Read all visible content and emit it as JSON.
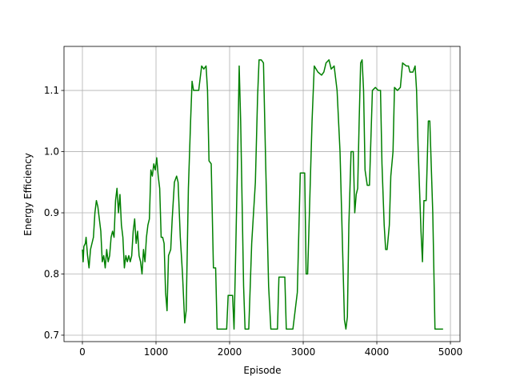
{
  "chart_data": {
    "type": "line",
    "x_label": "Episode",
    "y_label": "Energy Efficiency",
    "xlim": [
      -250,
      5130
    ],
    "ylim": [
      0.6895,
      1.172
    ],
    "xticks": [
      0,
      1000,
      2000,
      3000,
      4000,
      5000
    ],
    "yticks": [
      0.7,
      0.8,
      0.9,
      {
        "value": 1,
        "label": "1.0"
      },
      1.1
    ],
    "grid": true,
    "color": "#008000",
    "x": [
      0,
      10,
      20,
      40,
      50,
      70,
      90,
      110,
      130,
      150,
      170,
      190,
      210,
      230,
      250,
      270,
      290,
      310,
      330,
      350,
      370,
      390,
      410,
      430,
      450,
      470,
      490,
      510,
      530,
      550,
      570,
      590,
      610,
      630,
      650,
      670,
      690,
      710,
      730,
      750,
      770,
      790,
      810,
      830,
      850,
      870,
      890,
      910,
      930,
      950,
      970,
      990,
      1010,
      1030,
      1050,
      1070,
      1090,
      1110,
      1130,
      1150,
      1170,
      1200,
      1220,
      1250,
      1280,
      1300,
      1330,
      1360,
      1390,
      1410,
      1440,
      1470,
      1490,
      1510,
      1550,
      1580,
      1620,
      1650,
      1680,
      1700,
      1720,
      1750,
      1780,
      1810,
      1830,
      1900,
      1960,
      1980,
      2040,
      2060,
      2080,
      2110,
      2130,
      2150,
      2190,
      2210,
      2260,
      2300,
      2350,
      2380,
      2400,
      2430,
      2460,
      2490,
      2530,
      2560,
      2650,
      2670,
      2750,
      2770,
      2860,
      2920,
      2960,
      3020,
      3040,
      3060,
      3120,
      3150,
      3200,
      3250,
      3280,
      3310,
      3350,
      3380,
      3420,
      3460,
      3500,
      3560,
      3580,
      3600,
      3620,
      3650,
      3680,
      3700,
      3720,
      3740,
      3760,
      3780,
      3800,
      3820,
      3840,
      3870,
      3900,
      3940,
      3980,
      4020,
      4050,
      4070,
      4100,
      4120,
      4140,
      4170,
      4190,
      4220,
      4240,
      4280,
      4320,
      4350,
      4400,
      4430,
      4450,
      4490,
      4520,
      4540,
      4560,
      4580,
      4600,
      4620,
      4640,
      4670,
      4700,
      4720,
      4760,
      4790,
      4900
    ],
    "y": [
      0.84,
      0.82,
      0.845,
      0.85,
      0.86,
      0.83,
      0.81,
      0.84,
      0.85,
      0.86,
      0.9,
      0.92,
      0.91,
      0.89,
      0.87,
      0.82,
      0.83,
      0.81,
      0.84,
      0.82,
      0.83,
      0.86,
      0.87,
      0.86,
      0.92,
      0.94,
      0.9,
      0.93,
      0.88,
      0.86,
      0.81,
      0.83,
      0.82,
      0.83,
      0.82,
      0.83,
      0.87,
      0.89,
      0.85,
      0.87,
      0.83,
      0.82,
      0.8,
      0.84,
      0.82,
      0.86,
      0.88,
      0.89,
      0.97,
      0.96,
      0.98,
      0.97,
      0.99,
      0.96,
      0.94,
      0.86,
      0.86,
      0.85,
      0.77,
      0.74,
      0.83,
      0.84,
      0.89,
      0.95,
      0.96,
      0.95,
      0.86,
      0.8,
      0.72,
      0.74,
      0.94,
      1.05,
      1.115,
      1.1,
      1.1,
      1.1,
      1.14,
      1.135,
      1.14,
      1.1,
      0.985,
      0.98,
      0.81,
      0.81,
      0.71,
      0.71,
      0.71,
      0.765,
      0.765,
      0.71,
      0.82,
      1.0,
      1.14,
      1.05,
      0.78,
      0.71,
      0.71,
      0.85,
      0.95,
      1.09,
      1.15,
      1.15,
      1.145,
      0.98,
      0.78,
      0.71,
      0.71,
      0.795,
      0.795,
      0.71,
      0.71,
      0.77,
      0.965,
      0.965,
      0.8,
      0.8,
      1.05,
      1.14,
      1.13,
      1.125,
      1.13,
      1.145,
      1.15,
      1.135,
      1.14,
      1.1,
      1.0,
      0.725,
      0.71,
      0.73,
      0.88,
      1.0,
      1.0,
      0.9,
      0.93,
      0.94,
      1.05,
      1.145,
      1.15,
      1.1,
      0.97,
      0.945,
      0.945,
      1.1,
      1.105,
      1.1,
      1.1,
      0.98,
      0.88,
      0.84,
      0.84,
      0.88,
      0.96,
      1.0,
      1.105,
      1.1,
      1.105,
      1.145,
      1.14,
      1.14,
      1.13,
      1.13,
      1.14,
      1.1,
      1.01,
      0.94,
      0.87,
      0.82,
      0.92,
      0.92,
      1.05,
      1.05,
      0.9,
      0.71,
      0.71
    ]
  }
}
